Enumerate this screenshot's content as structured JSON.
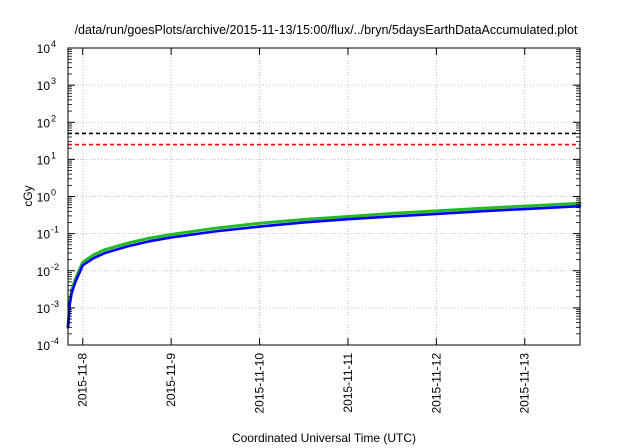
{
  "chart_data": {
    "type": "line",
    "title": "/data/run/goesPlots/archive/2015-11-13/15:00/flux/../bryn/5daysEarthDataAccumulated.plot",
    "xlabel": "Coordinated Universal Time (UTC)",
    "ylabel": "cGy",
    "y_scale": "log",
    "ylim": [
      0.0001,
      10000
    ],
    "xlim": [
      "2015-11-07 20:00",
      "2015-11-13 15:00"
    ],
    "x_ticks": [
      "2015-11-8",
      "2015-11-9",
      "2015-11-10",
      "2015-11-11",
      "2015-11-12",
      "2015-11-13"
    ],
    "y_ticks": [
      {
        "base": "10",
        "exp": "-4",
        "value": 0.0001
      },
      {
        "base": "10",
        "exp": "-3",
        "value": 0.001
      },
      {
        "base": "10",
        "exp": "-2",
        "value": 0.01
      },
      {
        "base": "10",
        "exp": "-1",
        "value": 0.1
      },
      {
        "base": "10",
        "exp": "0",
        "value": 1
      },
      {
        "base": "10",
        "exp": "1",
        "value": 10
      },
      {
        "base": "10",
        "exp": "2",
        "value": 100
      },
      {
        "base": "10",
        "exp": "3",
        "value": 1000
      },
      {
        "base": "10",
        "exp": "4",
        "value": 10000
      }
    ],
    "grid": true,
    "legend": "none",
    "reference_lines": [
      {
        "value": 50,
        "color": "#000000",
        "style": "dashed"
      },
      {
        "value": 25,
        "color": "#ff0000",
        "style": "dashed"
      }
    ],
    "series": [
      {
        "color": "#22bb22",
        "x": [
          "2015-11-07 20:00",
          "2015-11-07 20:30",
          "2015-11-07 21:00",
          "2015-11-07 22:00",
          "2015-11-08 00:00",
          "2015-11-08 03:00",
          "2015-11-08 06:00",
          "2015-11-08 12:00",
          "2015-11-08 18:00",
          "2015-11-09 00:00",
          "2015-11-09 12:00",
          "2015-11-10 00:00",
          "2015-11-10 12:00",
          "2015-11-11 00:00",
          "2015-11-11 12:00",
          "2015-11-12 00:00",
          "2015-11-12 12:00",
          "2015-11-13 00:00",
          "2015-11-13 15:00"
        ],
        "values": [
          0.0003,
          0.0015,
          0.003,
          0.006,
          0.017,
          0.027,
          0.037,
          0.055,
          0.075,
          0.095,
          0.14,
          0.19,
          0.24,
          0.29,
          0.35,
          0.41,
          0.48,
          0.55,
          0.66
        ]
      },
      {
        "color": "#0000ff",
        "x": [
          "2015-11-07 20:00",
          "2015-11-07 20:30",
          "2015-11-07 21:00",
          "2015-11-07 22:00",
          "2015-11-08 00:00",
          "2015-11-08 03:00",
          "2015-11-08 06:00",
          "2015-11-08 12:00",
          "2015-11-08 18:00",
          "2015-11-09 00:00",
          "2015-11-09 12:00",
          "2015-11-10 00:00",
          "2015-11-10 12:00",
          "2015-11-11 00:00",
          "2015-11-11 12:00",
          "2015-11-12 00:00",
          "2015-11-12 12:00",
          "2015-11-13 00:00",
          "2015-11-13 15:00"
        ],
        "values": [
          0.0003,
          0.0013,
          0.0025,
          0.005,
          0.014,
          0.022,
          0.03,
          0.045,
          0.062,
          0.079,
          0.115,
          0.155,
          0.2,
          0.245,
          0.29,
          0.34,
          0.4,
          0.46,
          0.55
        ]
      }
    ]
  }
}
